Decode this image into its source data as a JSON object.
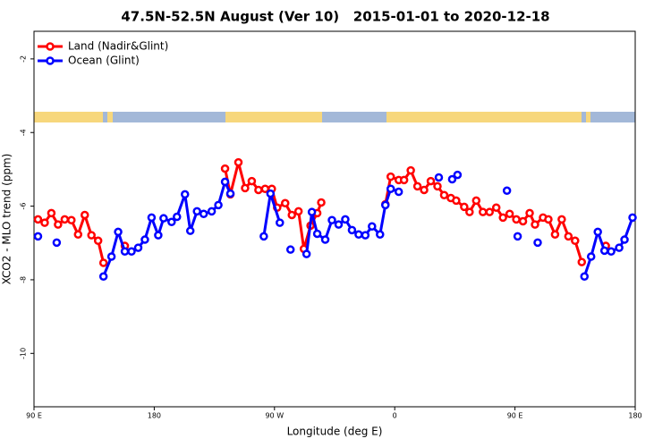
{
  "chart_data": {
    "type": "line",
    "title": "47.5N-52.5N August (Ver 10)   2015-01-01 to 2020-12-18",
    "x_label": "Longitude (deg E)",
    "y_label": "XCO2 - MLO trend (ppm)",
    "xlim": [
      90,
      540
    ],
    "ylim": [
      -11.45,
      -1.25
    ],
    "xticks": [
      {
        "value": 90,
        "label": "90 E"
      },
      180,
      {
        "value": 270,
        "label": "90 W"
      },
      {
        "value": 360,
        "label": "0"
      },
      {
        "value": 450,
        "label": "90 E"
      },
      {
        "value": 540,
        "label": "180"
      }
    ],
    "yticks": [
      -2,
      -4,
      -6,
      -8,
      -10
    ],
    "legend": "top-left",
    "series": [
      {
        "name": "Land (Nadir&Glint)",
        "color": "#ff0000",
        "x": [
          93,
          98,
          103,
          108,
          113,
          118,
          123,
          128,
          133,
          138,
          142,
          null,
          158,
          null,
          233,
          237,
          243,
          248,
          253,
          258,
          263,
          268,
          272,
          278,
          283,
          288,
          292,
          297,
          302,
          305,
          null,
          353,
          357,
          363,
          367,
          372,
          377,
          382,
          387,
          392,
          397,
          402,
          406,
          412,
          416,
          421,
          426,
          431,
          436,
          441,
          446,
          451,
          456,
          461,
          465,
          471,
          475,
          480,
          485,
          490,
          495,
          500,
          null,
          518
        ],
        "values": [
          -6.36,
          -6.45,
          -6.19,
          -6.5,
          -6.36,
          -6.38,
          -6.77,
          -6.24,
          -6.79,
          -6.94,
          -7.54,
          null,
          -7.08,
          null,
          -4.98,
          -5.68,
          -4.81,
          -5.51,
          -5.32,
          -5.56,
          -5.53,
          -5.53,
          -6.04,
          -5.92,
          -6.24,
          -6.14,
          -7.16,
          -6.53,
          -6.19,
          -5.9,
          null,
          -5.95,
          -5.2,
          -5.29,
          -5.29,
          -5.03,
          -5.46,
          -5.56,
          -5.32,
          -5.46,
          -5.7,
          -5.78,
          -5.85,
          -6.02,
          -6.16,
          -5.85,
          -6.16,
          -6.16,
          -6.04,
          -6.31,
          -6.21,
          -6.36,
          -6.41,
          -6.19,
          -6.5,
          -6.31,
          -6.36,
          -6.77,
          -6.36,
          -6.82,
          -6.94,
          -7.52,
          null,
          -7.08
        ]
      },
      {
        "name": "Ocean (Glint)",
        "color": "#0000ff",
        "x": [
          93,
          null,
          107,
          null,
          142,
          148,
          153,
          158,
          163,
          168,
          173,
          178,
          183,
          187,
          193,
          197,
          203,
          207,
          212,
          217,
          223,
          228,
          233,
          237,
          null,
          262,
          267,
          274,
          null,
          282,
          null,
          294,
          298,
          302,
          308,
          313,
          318,
          323,
          328,
          333,
          338,
          343,
          349,
          353,
          357,
          363,
          null,
          393,
          null,
          403,
          407,
          null,
          444,
          null,
          452,
          null,
          467,
          null,
          502,
          507,
          512,
          517,
          522,
          528,
          532,
          538
        ],
        "values": [
          -6.82,
          null,
          -6.99,
          null,
          -7.91,
          -7.37,
          -6.7,
          -7.23,
          -7.23,
          -7.13,
          -6.91,
          -6.31,
          -6.79,
          -6.33,
          -6.43,
          -6.29,
          -5.68,
          -6.67,
          -6.14,
          -6.21,
          -6.14,
          -5.97,
          -5.34,
          -5.66,
          null,
          -6.82,
          -5.66,
          -6.45,
          null,
          -7.18,
          null,
          -7.3,
          -6.16,
          -6.75,
          -6.91,
          -6.38,
          -6.5,
          -6.36,
          -6.65,
          -6.77,
          -6.79,
          -6.55,
          -6.77,
          -5.97,
          -5.53,
          -5.61,
          null,
          -5.22,
          null,
          -5.27,
          -5.15,
          null,
          -5.58,
          null,
          -6.82,
          null,
          -6.99,
          null,
          -7.91,
          -7.37,
          -6.7,
          -7.21,
          -7.23,
          -7.13,
          -6.91,
          -6.31
        ]
      }
    ]
  }
}
